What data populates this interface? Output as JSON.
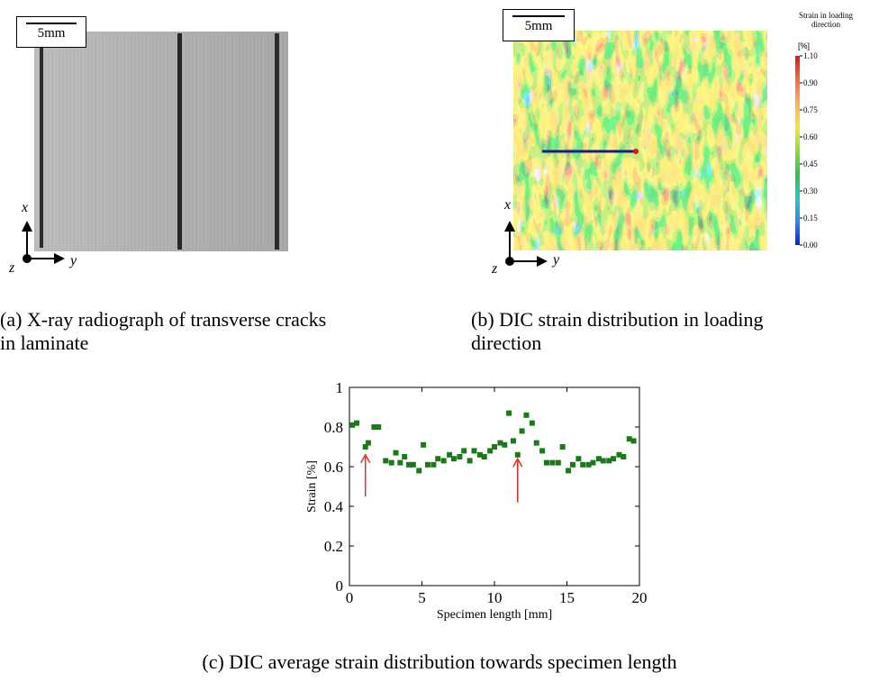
{
  "panel_a": {
    "scale_label": "5mm",
    "axis_x": "x",
    "axis_y": "y",
    "axis_z": "z",
    "caption_line1": "(a) X-ray radiograph of transverse cracks",
    "caption_line2": "in laminate"
  },
  "panel_b": {
    "scale_label": "5mm",
    "axis_x": "x",
    "axis_y": "y",
    "axis_z": "z",
    "colorbar_title_line1": "Strain in loading",
    "colorbar_title_line2": "direction",
    "colorbar_unit": "[%]",
    "colorbar_ticks": [
      "1.10",
      "0.90",
      "0.75",
      "0.60",
      "0.45",
      "0.30",
      "0.15",
      "0.00"
    ],
    "colorbar_colors": [
      "#d7191c",
      "#f46d43",
      "#fdae61",
      "#f6e834",
      "#8fdc3c",
      "#2fc14a",
      "#27c9c9",
      "#2b8ce8",
      "#0a1fd6"
    ],
    "caption_line1": "(b) DIC strain distribution in loading",
    "caption_line2": "direction"
  },
  "panel_c": {
    "caption": "(c) DIC average strain distribution towards specimen length"
  },
  "chart_data": {
    "type": "scatter",
    "xlabel": "Specimen length [mm]",
    "ylabel": "Strain [%]",
    "xlim": [
      0,
      20
    ],
    "ylim": [
      0,
      1
    ],
    "xticks": [
      0,
      5,
      10,
      15,
      20
    ],
    "yticks": [
      0,
      0.2,
      0.4,
      0.6,
      0.8,
      1
    ],
    "grid": false,
    "marker_color": "#1a7a1a",
    "annotation_color": "#e8282a",
    "annotations": [
      {
        "type": "arrow",
        "x": 1.1,
        "y_from": 0.45,
        "y_to": 0.66
      },
      {
        "type": "arrow",
        "x": 11.6,
        "y_from": 0.42,
        "y_to": 0.64
      }
    ],
    "x": [
      0.2,
      0.5,
      1.1,
      1.3,
      1.7,
      2.0,
      2.5,
      2.9,
      3.2,
      3.5,
      3.8,
      4.1,
      4.4,
      4.8,
      5.1,
      5.4,
      5.8,
      6.1,
      6.5,
      6.9,
      7.2,
      7.6,
      7.9,
      8.3,
      8.6,
      9.0,
      9.3,
      9.7,
      10.0,
      10.4,
      10.7,
      11.0,
      11.3,
      11.6,
      11.9,
      12.2,
      12.6,
      12.9,
      13.3,
      13.6,
      14.0,
      14.4,
      14.7,
      15.1,
      15.4,
      15.8,
      16.1,
      16.5,
      16.8,
      17.2,
      17.5,
      17.9,
      18.2,
      18.6,
      18.9,
      19.3,
      19.6
    ],
    "y": [
      0.81,
      0.82,
      0.7,
      0.72,
      0.8,
      0.8,
      0.63,
      0.62,
      0.67,
      0.62,
      0.65,
      0.61,
      0.61,
      0.58,
      0.71,
      0.61,
      0.61,
      0.64,
      0.63,
      0.66,
      0.64,
      0.65,
      0.68,
      0.63,
      0.68,
      0.66,
      0.65,
      0.68,
      0.7,
      0.72,
      0.71,
      0.87,
      0.73,
      0.66,
      0.78,
      0.86,
      0.82,
      0.72,
      0.68,
      0.62,
      0.62,
      0.62,
      0.7,
      0.58,
      0.61,
      0.64,
      0.61,
      0.61,
      0.62,
      0.64,
      0.63,
      0.63,
      0.64,
      0.66,
      0.65,
      0.74,
      0.73
    ]
  }
}
